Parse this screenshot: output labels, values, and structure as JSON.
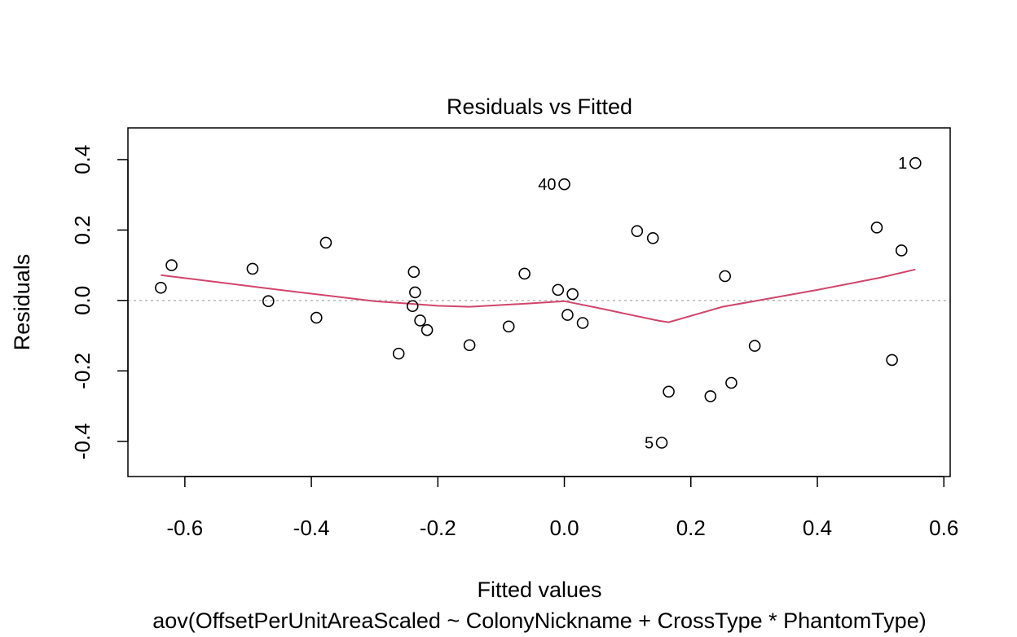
{
  "chart_data": {
    "type": "scatter",
    "title": "Residuals vs Fitted",
    "xlabel": "Fitted values",
    "subtitle": "aov(OffsetPerUnitAreaScaled ~ ColonyNickname + CrossType * PhantomType)",
    "ylabel": "Residuals",
    "xlim": [
      -0.69,
      0.61
    ],
    "ylim": [
      -0.5,
      0.49
    ],
    "x_ticks": [
      "-0.6",
      "-0.4",
      "-0.2",
      "0.0",
      "0.2",
      "0.4",
      "0.6"
    ],
    "y_ticks": [
      "-0.4",
      "-0.2",
      "0.0",
      "0.2",
      "0.4"
    ],
    "zero_line": {
      "y": 0,
      "style": "dotted",
      "color": "#aaaaaa"
    },
    "points": [
      {
        "x": -0.638,
        "y": 0.036
      },
      {
        "x": -0.621,
        "y": 0.1
      },
      {
        "x": -0.493,
        "y": 0.09
      },
      {
        "x": -0.468,
        "y": -0.002
      },
      {
        "x": -0.392,
        "y": -0.049
      },
      {
        "x": -0.377,
        "y": 0.164
      },
      {
        "x": -0.262,
        "y": -0.151
      },
      {
        "x": -0.24,
        "y": -0.016
      },
      {
        "x": -0.238,
        "y": 0.081
      },
      {
        "x": -0.236,
        "y": 0.023
      },
      {
        "x": -0.228,
        "y": -0.057
      },
      {
        "x": -0.217,
        "y": -0.084
      },
      {
        "x": -0.15,
        "y": -0.127
      },
      {
        "x": -0.088,
        "y": -0.074
      },
      {
        "x": -0.063,
        "y": 0.076
      },
      {
        "x": -0.01,
        "y": 0.03
      },
      {
        "x": 0.0,
        "y": 0.33,
        "label": "40"
      },
      {
        "x": 0.005,
        "y": -0.041
      },
      {
        "x": 0.013,
        "y": 0.018
      },
      {
        "x": 0.029,
        "y": -0.064
      },
      {
        "x": 0.115,
        "y": 0.197
      },
      {
        "x": 0.14,
        "y": 0.177
      },
      {
        "x": 0.154,
        "y": -0.404,
        "label": "5"
      },
      {
        "x": 0.165,
        "y": -0.259
      },
      {
        "x": 0.231,
        "y": -0.272
      },
      {
        "x": 0.254,
        "y": 0.069
      },
      {
        "x": 0.264,
        "y": -0.234
      },
      {
        "x": 0.301,
        "y": -0.129
      },
      {
        "x": 0.494,
        "y": 0.207
      },
      {
        "x": 0.518,
        "y": -0.169
      },
      {
        "x": 0.533,
        "y": 0.142
      },
      {
        "x": 0.555,
        "y": 0.39,
        "label": "1"
      }
    ],
    "smooth_line": {
      "color": "#d0456a",
      "x": [
        -0.638,
        -0.45,
        -0.3,
        -0.2,
        -0.15,
        -0.05,
        0.0,
        0.05,
        0.15,
        0.165,
        0.25,
        0.3,
        0.4,
        0.5,
        0.555
      ],
      "y": [
        0.072,
        0.03,
        -0.002,
        -0.015,
        -0.018,
        -0.008,
        -0.002,
        -0.02,
        -0.058,
        -0.062,
        -0.018,
        -0.002,
        0.03,
        0.065,
        0.088
      ]
    },
    "grid": false,
    "legend": "none"
  }
}
